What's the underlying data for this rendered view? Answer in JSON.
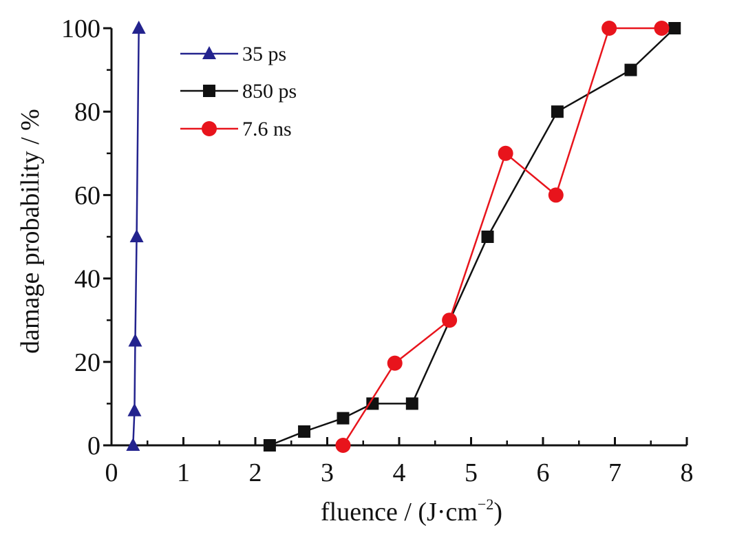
{
  "chart_data": {
    "type": "line",
    "title": "",
    "xlabel": "fluence / (J·cm",
    "xlabel_sup": "−2",
    "xlabel_end": ")",
    "ylabel": "damage probability / %",
    "xlim": [
      0,
      8
    ],
    "ylim": [
      0,
      100
    ],
    "xticks": [
      "0",
      "1",
      "2",
      "3",
      "4",
      "5",
      "6",
      "7",
      "8"
    ],
    "yticks": [
      "0",
      "20",
      "40",
      "60",
      "80",
      "100"
    ],
    "grid": false,
    "legend_position": "top-left",
    "series": [
      {
        "name": "35 ps",
        "color": "#23238e",
        "marker": "triangle",
        "x": [
          0.3,
          0.32,
          0.33,
          0.35,
          0.38
        ],
        "y": [
          0,
          8.3,
          25,
          50,
          100
        ]
      },
      {
        "name": "850 ps",
        "color": "#111111",
        "marker": "square",
        "x": [
          2.2,
          2.68,
          3.22,
          3.63,
          4.18,
          5.23,
          6.2,
          7.22,
          7.83
        ],
        "y": [
          0,
          3.3,
          6.5,
          10,
          10,
          50,
          80,
          90,
          100
        ]
      },
      {
        "name": "7.6 ns",
        "color": "#e8141c",
        "marker": "circle",
        "x": [
          3.22,
          3.94,
          4.7,
          5.48,
          6.18,
          6.92,
          7.65
        ],
        "y": [
          0,
          19.7,
          30,
          70,
          60,
          100,
          100
        ]
      }
    ]
  }
}
